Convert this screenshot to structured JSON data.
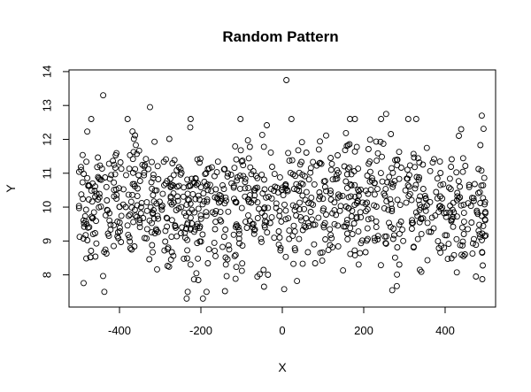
{
  "chart_data": {
    "type": "scatter",
    "title": "Random Pattern",
    "xlabel": "X",
    "ylabel": "Y",
    "xlim": [
      -524,
      524
    ],
    "ylim": [
      7.05,
      14.05
    ],
    "x_ticks": [
      -400,
      -200,
      0,
      200,
      400
    ],
    "y_ticks": [
      8,
      9,
      10,
      11,
      12,
      13,
      14
    ],
    "marker": "open-circle",
    "n_points": 1000,
    "x_range": [
      -500,
      500
    ],
    "y_mean": 10.1,
    "y_sd": 1.0,
    "notable_points": [
      {
        "x": 10,
        "y": 13.75
      },
      {
        "x": -440,
        "y": 13.3
      },
      {
        "x": -325,
        "y": 12.95
      },
      {
        "x": -235,
        "y": 7.3
      },
      {
        "x": -195,
        "y": 7.3
      },
      {
        "x": 270,
        "y": 7.55
      },
      {
        "x": -45,
        "y": 7.65
      },
      {
        "x": 255,
        "y": 12.75
      },
      {
        "x": 490,
        "y": 12.7
      }
    ],
    "colors": {
      "marker": "#000000",
      "axis": "#000000",
      "background": "#ffffff"
    }
  }
}
